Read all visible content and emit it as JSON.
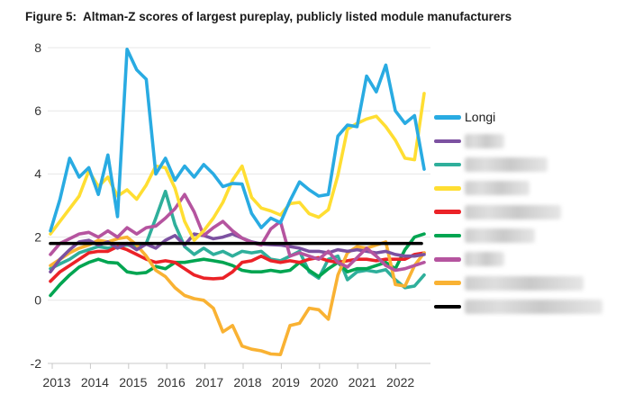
{
  "title": "Figure 5:  Altman-Z scores of largest pureplay, publicly listed module manufacturers",
  "colors": {
    "longi_blue": "#29ABE2",
    "purple": "#7C51A1",
    "teal": "#2FAF9B",
    "yellow": "#FFDE32",
    "red": "#EB2227",
    "green": "#00A551",
    "magenta": "#B5549F",
    "orange": "#F9B233",
    "threshold_black": "#000000",
    "gridline": "#e7e7e7",
    "axis": "#c8c8c8",
    "tick_text": "#333333"
  },
  "chart_data": {
    "type": "line",
    "title": "Figure 5:  Altman-Z scores of largest pureplay, publicly listed module manufacturers",
    "xlabel": "",
    "ylabel": "",
    "x_ticks": [
      2013,
      2014,
      2015,
      2016,
      2017,
      2018,
      2019,
      2020,
      2021,
      2022
    ],
    "y_ticks": [
      8,
      6,
      4,
      2,
      0,
      -2
    ],
    "ylim": [
      -2,
      8
    ],
    "grid": "horizontal",
    "legend_position": "right",
    "x_years": {
      "start": 2013.0,
      "step": 0.25,
      "count": 40
    },
    "threshold_line": {
      "value": 1.8,
      "color": "#000000",
      "label_redacted": true
    },
    "series": [
      {
        "name": "Longi",
        "legend_redacted": false,
        "color": "#29ABE2",
        "values": [
          2.2,
          3.2,
          4.5,
          3.9,
          4.2,
          3.35,
          4.6,
          2.65,
          7.95,
          7.3,
          7.0,
          4.0,
          4.5,
          3.8,
          4.25,
          3.9,
          4.3,
          4.0,
          3.6,
          3.7,
          3.68,
          2.75,
          2.3,
          2.6,
          2.46,
          3.15,
          3.75,
          3.5,
          3.3,
          3.35,
          5.2,
          5.55,
          5.5,
          7.1,
          6.6,
          7.45,
          6.0,
          5.6,
          5.85,
          4.15
        ]
      },
      {
        "name": "redacted-purple",
        "legend_redacted": true,
        "color": "#7C51A1",
        "values": [
          0.9,
          1.3,
          1.6,
          1.85,
          1.9,
          1.75,
          1.85,
          1.65,
          1.8,
          1.6,
          1.78,
          1.65,
          1.9,
          2.05,
          1.75,
          2.1,
          2.05,
          1.95,
          2.0,
          2.1,
          1.97,
          1.85,
          1.78,
          1.76,
          1.75,
          1.7,
          1.65,
          1.55,
          1.55,
          1.5,
          1.6,
          1.55,
          1.6,
          1.55,
          1.5,
          1.55,
          1.45,
          1.4,
          1.4,
          1.45
        ]
      },
      {
        "name": "redacted-teal",
        "legend_redacted": true,
        "color": "#2FAF9B",
        "values": [
          1.0,
          1.15,
          1.3,
          1.5,
          1.6,
          1.7,
          1.65,
          1.7,
          1.75,
          1.7,
          1.8,
          2.6,
          3.45,
          2.4,
          1.7,
          1.45,
          1.65,
          1.45,
          1.55,
          1.4,
          1.55,
          1.5,
          1.55,
          1.3,
          1.25,
          1.4,
          1.55,
          0.9,
          0.7,
          1.3,
          1.4,
          0.65,
          0.9,
          0.95,
          0.9,
          0.97,
          0.65,
          0.4,
          0.45,
          0.8
        ]
      },
      {
        "name": "redacted-yellow",
        "legend_redacted": true,
        "color": "#FFDE32",
        "values": [
          2.1,
          2.5,
          2.9,
          3.3,
          4.1,
          3.6,
          3.9,
          3.3,
          3.5,
          3.2,
          3.65,
          4.25,
          4.2,
          3.55,
          2.5,
          1.9,
          2.2,
          2.6,
          3.1,
          3.8,
          4.25,
          3.26,
          2.92,
          2.83,
          2.7,
          3.06,
          3.1,
          2.74,
          2.63,
          2.87,
          3.96,
          5.42,
          5.6,
          5.74,
          5.83,
          5.5,
          5.07,
          4.5,
          4.45,
          6.55
        ]
      },
      {
        "name": "redacted-red",
        "legend_redacted": true,
        "color": "#EB2227",
        "values": [
          0.6,
          0.9,
          1.1,
          1.3,
          1.5,
          1.55,
          1.55,
          1.7,
          1.6,
          1.45,
          1.3,
          1.2,
          1.25,
          1.2,
          1.0,
          0.8,
          0.7,
          0.68,
          0.7,
          0.9,
          1.2,
          1.25,
          1.4,
          1.25,
          1.2,
          1.25,
          1.2,
          1.3,
          1.35,
          1.25,
          1.2,
          1.25,
          1.3,
          1.3,
          1.25,
          1.3,
          1.3,
          1.3,
          1.45,
          1.5
        ]
      },
      {
        "name": "redacted-green",
        "legend_redacted": true,
        "color": "#00A551",
        "values": [
          0.15,
          0.5,
          0.8,
          1.05,
          1.2,
          1.3,
          1.2,
          1.18,
          0.9,
          0.85,
          0.88,
          1.07,
          1.0,
          1.2,
          1.2,
          1.25,
          1.3,
          1.25,
          1.2,
          1.1,
          0.95,
          0.9,
          0.9,
          0.95,
          0.9,
          0.95,
          1.2,
          0.95,
          0.75,
          1.0,
          1.2,
          0.9,
          1.0,
          1.0,
          1.1,
          1.2,
          1.0,
          1.6,
          2.0,
          2.1
        ]
      },
      {
        "name": "redacted-magenta",
        "legend_redacted": true,
        "color": "#B5549F",
        "values": [
          1.45,
          1.8,
          1.95,
          2.1,
          2.15,
          2.0,
          2.2,
          2.0,
          2.3,
          2.1,
          2.3,
          2.35,
          2.6,
          2.9,
          3.35,
          2.8,
          2.05,
          2.3,
          2.5,
          2.2,
          1.97,
          1.83,
          1.75,
          2.26,
          2.5,
          1.4,
          1.5,
          1.4,
          1.3,
          1.55,
          1.2,
          1.05,
          1.35,
          1.65,
          1.4,
          1.1,
          0.95,
          1.0,
          1.1,
          1.2
        ]
      },
      {
        "name": "redacted-orange",
        "legend_redacted": true,
        "color": "#F9B233",
        "values": [
          1.1,
          1.3,
          1.5,
          1.65,
          1.75,
          1.9,
          1.85,
          1.95,
          2.0,
          1.75,
          1.4,
          0.95,
          0.75,
          0.4,
          0.15,
          0.05,
          0.0,
          -0.25,
          -1.0,
          -0.8,
          -1.45,
          -1.55,
          -1.6,
          -1.7,
          -1.72,
          -0.8,
          -0.73,
          -0.25,
          -0.3,
          -0.6,
          0.8,
          1.5,
          1.7,
          1.65,
          1.75,
          1.85,
          0.5,
          0.45,
          1.1,
          1.5
        ]
      },
      {
        "name": "redacted-black-threshold",
        "legend_redacted": true,
        "color": "#000000",
        "flat": 1.8,
        "values": []
      }
    ]
  },
  "legend": {
    "items": [
      {
        "label": "Longi",
        "color": "#29ABE2",
        "redacted": false,
        "redacted_width": 0
      },
      {
        "label": "",
        "color": "#7C51A1",
        "redacted": true,
        "redacted_width": 44
      },
      {
        "label": "",
        "color": "#2FAF9B",
        "redacted": true,
        "redacted_width": 92
      },
      {
        "label": "",
        "color": "#FFDE32",
        "redacted": true,
        "redacted_width": 72
      },
      {
        "label": "",
        "color": "#EB2227",
        "redacted": true,
        "redacted_width": 107
      },
      {
        "label": "",
        "color": "#00A551",
        "redacted": true,
        "redacted_width": 78
      },
      {
        "label": "",
        "color": "#B5549F",
        "redacted": true,
        "redacted_width": 44
      },
      {
        "label": "",
        "color": "#F9B233",
        "redacted": true,
        "redacted_width": 132
      },
      {
        "label": "",
        "color": "#000000",
        "redacted": true,
        "redacted_width": 153
      }
    ]
  }
}
